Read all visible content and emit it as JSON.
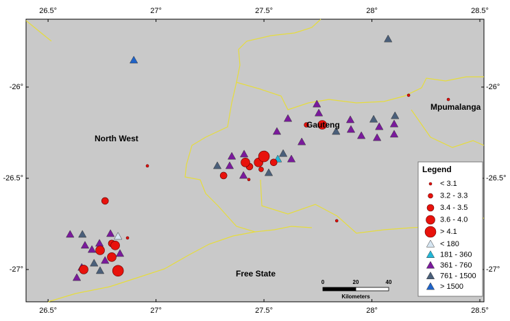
{
  "map": {
    "xlim": [
      26.398,
      28.519
    ],
    "ylim": [
      -27.177,
      -25.628
    ],
    "xticks": [
      {
        "value": 26.5,
        "label": "26.5°"
      },
      {
        "value": 27,
        "label": "27°"
      },
      {
        "value": 27.5,
        "label": "27.5°"
      },
      {
        "value": 28,
        "label": "28°"
      },
      {
        "value": 28.5,
        "label": "28.5°"
      }
    ],
    "yticks": [
      {
        "value": -26,
        "label": "-26°"
      },
      {
        "value": -26.5,
        "label": "-26.5°"
      },
      {
        "value": -27,
        "label": "-27°"
      }
    ],
    "regions": [
      "North West",
      "Gauteng",
      "Mpumalanga",
      "Free State"
    ],
    "legend": {
      "title": "Legend",
      "magnitude": [
        {
          "label": "< 3.1",
          "color": "#e8120c",
          "events": [
            [
              28.17,
              -26.045
            ],
            [
              28.354,
              -26.068
            ],
            [
              26.96,
              -26.432
            ],
            [
              27.837,
              -26.733
            ],
            [
              27.43,
              -26.507
            ],
            [
              26.868,
              -26.827
            ]
          ]
        },
        {
          "label": "3.2 - 3.3",
          "color": "#e8120c",
          "events": [
            [
              27.697,
              -26.207
            ],
            [
              27.487,
              -26.451
            ]
          ]
        },
        {
          "label": "3.4 - 3.5",
          "color": "#e8120c",
          "events": [
            [
              27.545,
              -26.413
            ],
            [
              27.313,
              -26.485
            ],
            [
              27.433,
              -26.436
            ],
            [
              26.795,
              -26.857
            ],
            [
              26.764,
              -26.624
            ]
          ]
        },
        {
          "label": "3.6 - 4.0",
          "color": "#e8120c",
          "events": [
            [
              27.77,
              -26.207
            ],
            [
              27.414,
              -26.413
            ],
            [
              27.475,
              -26.413
            ],
            [
              26.795,
              -26.932
            ],
            [
              26.741,
              -26.895
            ],
            [
              26.665,
              -27.0
            ],
            [
              26.811,
              -26.868
            ]
          ]
        },
        {
          "label": "> 4.1",
          "color": "#e8120c",
          "events": [
            [
              27.5,
              -26.38
            ],
            [
              26.824,
              -27.007
            ]
          ]
        }
      ],
      "depth": [
        {
          "label": "< 180",
          "color": "#d6e6f2",
          "events": [
            [
              26.824,
              -26.819
            ]
          ]
        },
        {
          "label": "181 - 360",
          "color": "#22b7d8",
          "events": [
            [
              27.564,
              -26.395
            ]
          ]
        },
        {
          "label": "361 - 760",
          "color": "#7a1a9c",
          "events": [
            [
              27.745,
              -26.094
            ],
            [
              27.754,
              -26.143
            ],
            [
              27.56,
              -26.244
            ],
            [
              27.611,
              -26.173
            ],
            [
              27.675,
              -26.301
            ],
            [
              27.9,
              -26.18
            ],
            [
              27.903,
              -26.233
            ],
            [
              27.951,
              -26.267
            ],
            [
              28.024,
              -26.278
            ],
            [
              28.034,
              -26.218
            ],
            [
              28.103,
              -26.203
            ],
            [
              28.103,
              -26.259
            ],
            [
              26.602,
              -26.808
            ],
            [
              26.671,
              -26.868
            ],
            [
              26.703,
              -26.891
            ],
            [
              26.633,
              -27.045
            ],
            [
              26.789,
              -26.804
            ],
            [
              26.833,
              -26.913
            ],
            [
              26.764,
              -26.951
            ],
            [
              27.351,
              -26.38
            ],
            [
              27.341,
              -26.432
            ],
            [
              27.405,
              -26.485
            ],
            [
              27.408,
              -26.368
            ],
            [
              27.627,
              -26.395
            ],
            [
              26.656,
              -26.989
            ],
            [
              26.738,
              -26.857
            ]
          ]
        },
        {
          "label": "761 - 1500",
          "color": "#4a5f7a",
          "events": [
            [
              28.075,
              -25.737
            ],
            [
              26.659,
              -26.808
            ],
            [
              27.284,
              -26.432
            ],
            [
              27.506,
              -26.372
            ],
            [
              27.522,
              -26.47
            ],
            [
              27.589,
              -26.365
            ],
            [
              28.008,
              -26.177
            ],
            [
              28.107,
              -26.158
            ],
            [
              27.834,
              -26.244
            ],
            [
              26.713,
              -26.966
            ],
            [
              26.741,
              -27.007
            ]
          ]
        },
        {
          "label": "> 1500",
          "color": "#1f63c8",
          "events": [
            [
              26.897,
              -25.853
            ]
          ]
        }
      ]
    },
    "scale_bar": {
      "ticks": [
        0,
        20,
        40
      ],
      "unit": "Kilometers"
    }
  }
}
